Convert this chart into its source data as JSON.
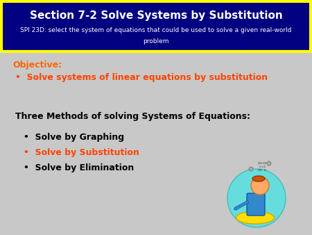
{
  "title_line1": "Section 7-2 Solve Systems by Substitution",
  "title_line2": "SPI 23D: select the system of equations that could be used to solve a given real-world",
  "title_line3": "problem",
  "header_bg": "#000080",
  "header_text_color": "#FFFFFF",
  "header_border_color": "#FFFF00",
  "body_bg": "#C8C8C8",
  "objective_label": "Objective:",
  "objective_color": "#FF6600",
  "objective_bullet": "Solve systems of linear equations by substitution",
  "objective_bullet_color": "#FF4400",
  "methods_title": "Three Methods of solving Systems of Equations:",
  "methods_title_color": "#000000",
  "bullet1": "Solve by Graphing",
  "bullet1_color": "#000000",
  "bullet2": "Solve by Substitution",
  "bullet2_color": "#FF4400",
  "bullet3": "Solve by Elimination",
  "bullet3_color": "#000000",
  "fig_width": 4.5,
  "fig_height": 3.38,
  "dpi": 100
}
